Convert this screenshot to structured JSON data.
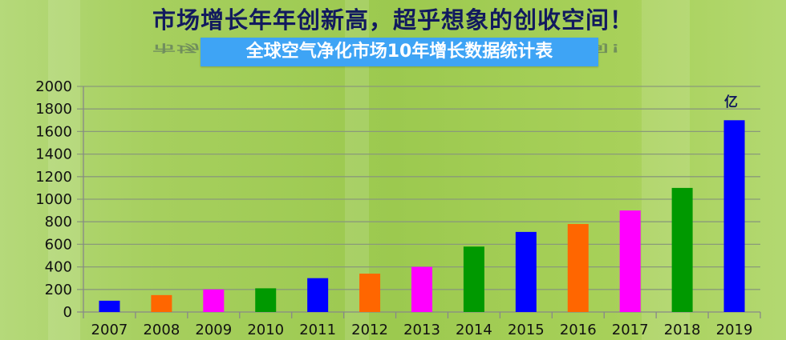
{
  "header": {
    "headline": "市场增长年年创新高，超乎想象的创收空间！",
    "subtitle": "全球空气净化市场10年增长数据统计表"
  },
  "chart_data": {
    "type": "bar",
    "title": "全球空气净化市场10年增长数据统计表",
    "unit_label": "亿",
    "categories": [
      "2007",
      "2008",
      "2009",
      "2010",
      "2011",
      "2012",
      "2013",
      "2014",
      "2015",
      "2016",
      "2017",
      "2018",
      "2019"
    ],
    "values": [
      100,
      150,
      200,
      210,
      300,
      340,
      400,
      580,
      710,
      780,
      900,
      1100,
      1700
    ],
    "colors": [
      "#0000ff",
      "#ff6600",
      "#ff00ff",
      "#009900",
      "#0000ff",
      "#ff6600",
      "#ff00ff",
      "#009900",
      "#0000ff",
      "#ff6600",
      "#ff00ff",
      "#009900",
      "#0000ff"
    ],
    "yticks": [
      "0",
      "200",
      "400",
      "600",
      "800",
      "1000",
      "1200",
      "1400",
      "1600",
      "1800",
      "2000"
    ],
    "ylim": [
      0,
      2000
    ],
    "grid": true,
    "xlabel": "",
    "ylabel": ""
  }
}
